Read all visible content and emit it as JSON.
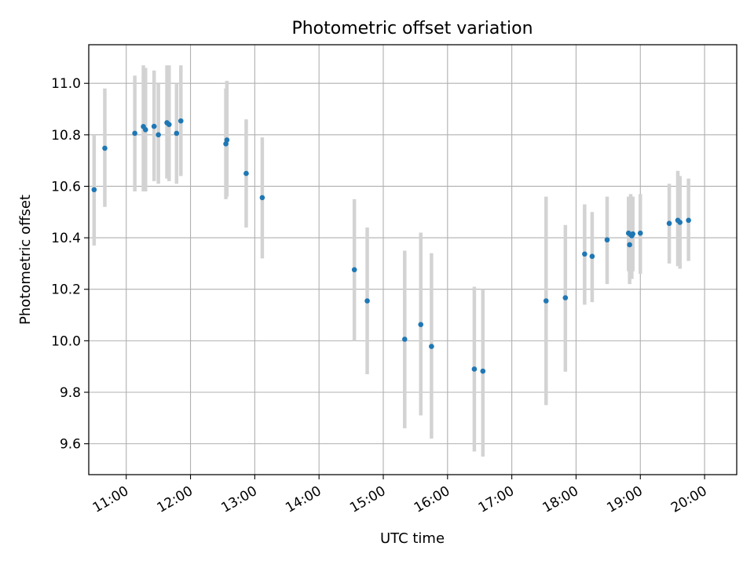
{
  "chart_data": {
    "type": "scatter",
    "title": "Photometric offset variation",
    "xlabel": "UTC time",
    "ylabel": "Photometric offset",
    "xlim": [
      "10:25",
      "20:30"
    ],
    "ylim": [
      9.48,
      11.15
    ],
    "grid": true,
    "x_tick_labels": [
      "11:00",
      "12:00",
      "13:00",
      "14:00",
      "15:00",
      "16:00",
      "17:00",
      "18:00",
      "19:00",
      "20:00"
    ],
    "y_tick_labels": [
      "9.6",
      "9.8",
      "10.0",
      "10.2",
      "10.4",
      "10.6",
      "10.8",
      "11.0"
    ],
    "colors": {
      "points": "#1f77b4",
      "errorbars": "#d3d3d3",
      "grid": "#b0b0b0"
    },
    "points": [
      {
        "time": "10:30",
        "offset": 10.587,
        "low": 10.37,
        "high": 10.8
      },
      {
        "time": "10:40",
        "offset": 10.748,
        "low": 10.52,
        "high": 10.98
      },
      {
        "time": "11:08",
        "offset": 10.806,
        "low": 10.58,
        "high": 11.03
      },
      {
        "time": "11:16",
        "offset": 10.832,
        "low": 10.58,
        "high": 11.07
      },
      {
        "time": "11:18",
        "offset": 10.82,
        "low": 10.58,
        "high": 11.06
      },
      {
        "time": "11:26",
        "offset": 10.833,
        "low": 10.62,
        "high": 11.05
      },
      {
        "time": "11:30",
        "offset": 10.8,
        "low": 10.61,
        "high": 11.0
      },
      {
        "time": "11:38",
        "offset": 10.847,
        "low": 10.63,
        "high": 11.07
      },
      {
        "time": "11:40",
        "offset": 10.84,
        "low": 10.62,
        "high": 11.07
      },
      {
        "time": "11:47",
        "offset": 10.806,
        "low": 10.61,
        "high": 11.0
      },
      {
        "time": "11:51",
        "offset": 10.854,
        "low": 10.64,
        "high": 11.07
      },
      {
        "time": "12:33",
        "offset": 10.765,
        "low": 10.55,
        "high": 10.98
      },
      {
        "time": "12:34",
        "offset": 10.78,
        "low": 10.56,
        "high": 11.01
      },
      {
        "time": "12:52",
        "offset": 10.65,
        "low": 10.44,
        "high": 10.86
      },
      {
        "time": "13:07",
        "offset": 10.556,
        "low": 10.32,
        "high": 10.79
      },
      {
        "time": "14:33",
        "offset": 10.276,
        "low": 10.0,
        "high": 10.55
      },
      {
        "time": "14:45",
        "offset": 10.155,
        "low": 9.87,
        "high": 10.44
      },
      {
        "time": "15:20",
        "offset": 10.006,
        "low": 9.66,
        "high": 10.35
      },
      {
        "time": "15:35",
        "offset": 10.063,
        "low": 9.71,
        "high": 10.42
      },
      {
        "time": "15:45",
        "offset": 9.978,
        "low": 9.62,
        "high": 10.34
      },
      {
        "time": "16:25",
        "offset": 9.89,
        "low": 9.57,
        "high": 10.21
      },
      {
        "time": "16:33",
        "offset": 9.882,
        "low": 9.55,
        "high": 10.2
      },
      {
        "time": "17:32",
        "offset": 10.155,
        "low": 9.75,
        "high": 10.56
      },
      {
        "time": "17:50",
        "offset": 10.167,
        "low": 9.88,
        "high": 10.45
      },
      {
        "time": "18:08",
        "offset": 10.337,
        "low": 10.14,
        "high": 10.53
      },
      {
        "time": "18:15",
        "offset": 10.328,
        "low": 10.15,
        "high": 10.5
      },
      {
        "time": "18:29",
        "offset": 10.392,
        "low": 10.22,
        "high": 10.56
      },
      {
        "time": "18:49",
        "offset": 10.418,
        "low": 10.27,
        "high": 10.56
      },
      {
        "time": "18:50",
        "offset": 10.373,
        "low": 10.22,
        "high": 10.53
      },
      {
        "time": "18:51",
        "offset": 10.412,
        "low": 10.25,
        "high": 10.57
      },
      {
        "time": "18:52",
        "offset": 10.408,
        "low": 10.24,
        "high": 10.56
      },
      {
        "time": "18:53",
        "offset": 10.415,
        "low": 10.27,
        "high": 10.56
      },
      {
        "time": "19:00",
        "offset": 10.418,
        "low": 10.26,
        "high": 10.57
      },
      {
        "time": "19:27",
        "offset": 10.456,
        "low": 10.3,
        "high": 10.61
      },
      {
        "time": "19:35",
        "offset": 10.468,
        "low": 10.29,
        "high": 10.66
      },
      {
        "time": "19:37",
        "offset": 10.46,
        "low": 10.28,
        "high": 10.64
      },
      {
        "time": "19:45",
        "offset": 10.468,
        "low": 10.31,
        "high": 10.63
      }
    ]
  }
}
